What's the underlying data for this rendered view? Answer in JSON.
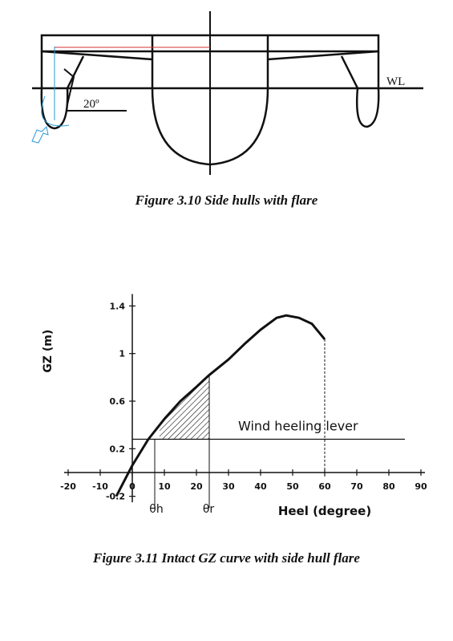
{
  "figure1": {
    "caption": "Figure 3.10  Side hulls with flare",
    "wl_label": "WL",
    "angle_label": "20º"
  },
  "figure2": {
    "caption": "Figure 3.11  Intact GZ curve with side hull flare",
    "annotation": "Wind heeling lever",
    "theta_h": "θh",
    "theta_r": "θr"
  },
  "chart_data": {
    "type": "line",
    "title": "",
    "xlabel": "Heel  (degree)",
    "ylabel": "GZ (m)",
    "xlim": [
      -20,
      90
    ],
    "ylim": [
      -0.2,
      1.4
    ],
    "x_ticks": [
      -20,
      -10,
      0,
      10,
      20,
      30,
      40,
      50,
      60,
      70,
      80,
      90
    ],
    "y_tick_labels": [
      "1.4",
      "1",
      "0.6",
      "0.2",
      "-0.2"
    ],
    "y_tick_values": [
      1.4,
      1.0,
      0.6,
      0.2,
      -0.2
    ],
    "x_tick_labels": [
      "-20",
      "-10",
      "0",
      "10",
      "20",
      "30",
      "40",
      "50",
      "60",
      "70",
      "80",
      "90"
    ],
    "series": [
      {
        "x": [
          -5,
          0,
          5,
          10,
          15,
          20,
          24,
          30,
          35,
          40,
          45,
          48,
          52,
          56,
          60
        ],
        "y": [
          -0.2,
          0.06,
          0.28,
          0.45,
          0.6,
          0.72,
          0.82,
          0.95,
          1.08,
          1.2,
          1.3,
          1.32,
          1.3,
          1.25,
          1.12
        ]
      }
    ],
    "wind_heeling_lever": 0.28,
    "theta_h_deg": 7,
    "theta_r_deg": 24,
    "theta_max_deg": 60
  }
}
